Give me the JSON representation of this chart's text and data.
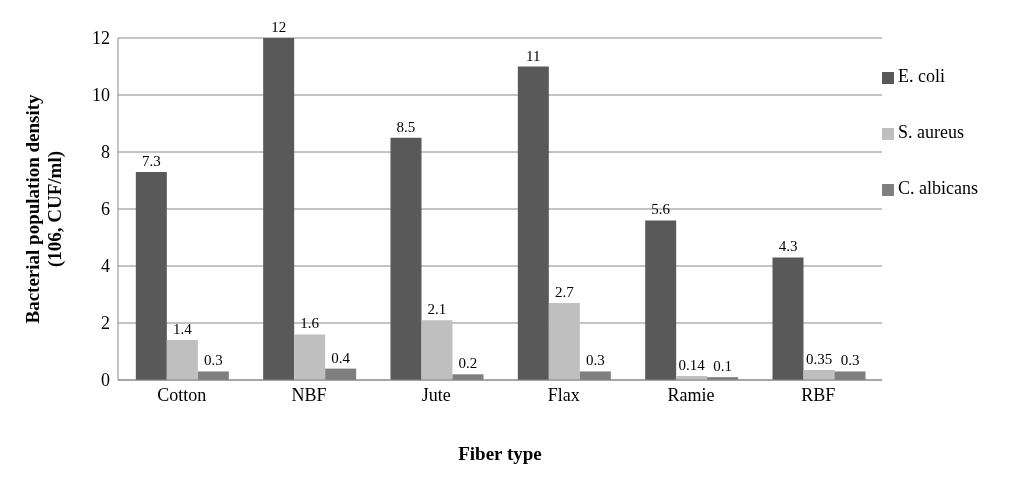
{
  "chart_data": {
    "type": "bar",
    "xlabel": "Fiber type",
    "ylabel": "Bacterial population density (106, CUF/ml)",
    "categories": [
      "Cotton",
      "NBF",
      "Jute",
      "Flax",
      "Ramie",
      "RBF"
    ],
    "series": [
      {
        "name": "E. coli",
        "color": "#595959",
        "values": [
          7.3,
          12,
          8.5,
          11,
          5.6,
          4.3
        ]
      },
      {
        "name": "S. aureus",
        "color": "#bfbfbf",
        "values": [
          1.4,
          1.6,
          2.1,
          2.7,
          0.14,
          0.35
        ]
      },
      {
        "name": "C. albicans",
        "color": "#7f7f7f",
        "values": [
          0.3,
          0.4,
          0.2,
          0.3,
          0.1,
          0.3
        ]
      }
    ],
    "ylim": [
      0,
      12
    ],
    "yticks": [
      0,
      2,
      4,
      6,
      8,
      10,
      12
    ],
    "grid": "y",
    "legend": "right",
    "data_labels": true
  }
}
